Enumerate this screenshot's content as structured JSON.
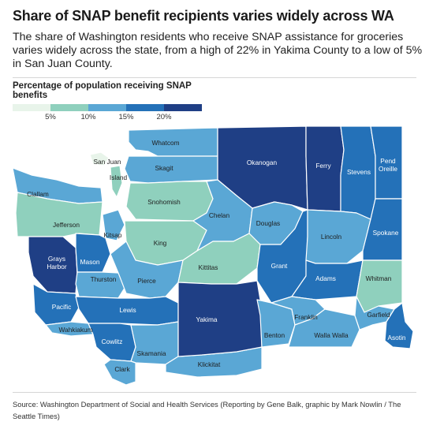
{
  "header": {
    "title": "Share of SNAP benefit recipients varies widely across WA",
    "subtitle": "The share of Washington residents who receive SNAP assistance for groceries varies widely across the state, from a high of 22% in Yakima County to a low of 5% in San Juan County."
  },
  "legend": {
    "title": "Percentage of population receiving SNAP benefits",
    "ticks": [
      "5%",
      "10%",
      "15%",
      "20%"
    ],
    "colors": [
      "#e8f4ea",
      "#8fd0bd",
      "#5aa7d5",
      "#2471b8",
      "#1f3f85"
    ]
  },
  "map": {
    "counties": [
      {
        "name": "Whatcom",
        "shade": 2
      },
      {
        "name": "San Juan",
        "shade": 0
      },
      {
        "name": "Island",
        "shade": 1
      },
      {
        "name": "Skagit",
        "shade": 2
      },
      {
        "name": "Clallam",
        "shade": 2
      },
      {
        "name": "Snohomish",
        "shade": 1
      },
      {
        "name": "Jefferson",
        "shade": 1
      },
      {
        "name": "Kitsap",
        "shade": 2
      },
      {
        "name": "King",
        "shade": 1
      },
      {
        "name": "Grays Harbor",
        "shade": 4
      },
      {
        "name": "Mason",
        "shade": 3
      },
      {
        "name": "Thurston",
        "shade": 2
      },
      {
        "name": "Pierce",
        "shade": 2
      },
      {
        "name": "Pacific",
        "shade": 3
      },
      {
        "name": "Wahkiakum",
        "shade": 2
      },
      {
        "name": "Lewis",
        "shade": 3
      },
      {
        "name": "Cowlitz",
        "shade": 3
      },
      {
        "name": "Skamania",
        "shade": 2
      },
      {
        "name": "Clark",
        "shade": 2
      },
      {
        "name": "Klickitat",
        "shade": 2
      },
      {
        "name": "Okanogan",
        "shade": 4
      },
      {
        "name": "Ferry",
        "shade": 4
      },
      {
        "name": "Stevens",
        "shade": 3
      },
      {
        "name": "Pend Oreille",
        "shade": 3
      },
      {
        "name": "Chelan",
        "shade": 2
      },
      {
        "name": "Douglas",
        "shade": 2
      },
      {
        "name": "Kittitas",
        "shade": 1
      },
      {
        "name": "Yakima",
        "shade": 4
      },
      {
        "name": "Grant",
        "shade": 3
      },
      {
        "name": "Lincoln",
        "shade": 2
      },
      {
        "name": "Spokane",
        "shade": 3
      },
      {
        "name": "Adams",
        "shade": 3
      },
      {
        "name": "Whitman",
        "shade": 1
      },
      {
        "name": "Benton",
        "shade": 2
      },
      {
        "name": "Franklin",
        "shade": 2
      },
      {
        "name": "Walla Walla",
        "shade": 2
      },
      {
        "name": "Garfield",
        "shade": 2
      },
      {
        "name": "Asotin",
        "shade": 3
      }
    ]
  },
  "source": "Source: Washington Department of Social and Health Services (Reporting by Gene Balk, graphic by Mark Nowlin / The Seattle Times)"
}
